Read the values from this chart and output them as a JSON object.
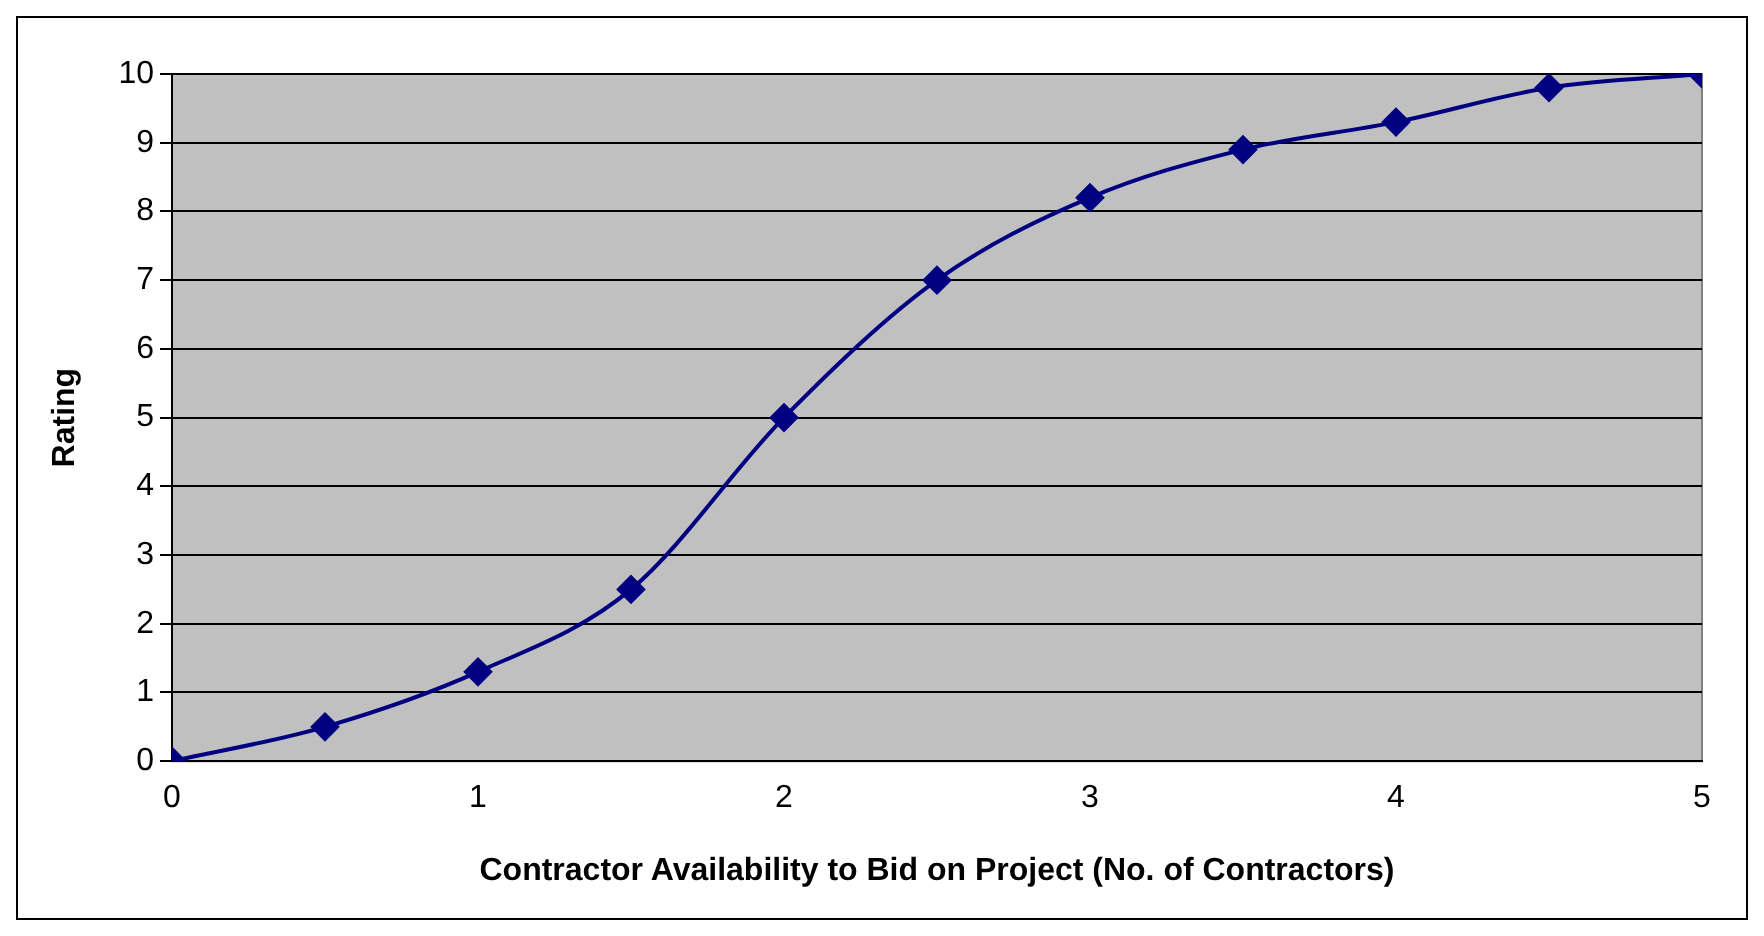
{
  "chart_data": {
    "type": "line",
    "xlabel": "Contractor Availability to Bid on Project (No. of Contractors)",
    "ylabel": "Rating",
    "x": [
      0,
      0.5,
      1,
      1.5,
      2,
      2.5,
      3,
      3.5,
      4,
      4.5,
      5
    ],
    "series": [
      {
        "color": "#000080",
        "values": [
          0,
          0.5,
          1.3,
          2.5,
          5,
          7,
          8.2,
          8.9,
          9.3,
          9.8,
          10
        ]
      }
    ],
    "xlim": [
      0,
      5
    ],
    "xticks": [
      0,
      1,
      2,
      3,
      4,
      5
    ],
    "ylim": [
      0,
      10
    ],
    "yticks": [
      0,
      1,
      2,
      3,
      4,
      5,
      6,
      7,
      8,
      9,
      10
    ],
    "grid": "y",
    "legend": false,
    "marker": "diamond",
    "line_style": "solid"
  }
}
